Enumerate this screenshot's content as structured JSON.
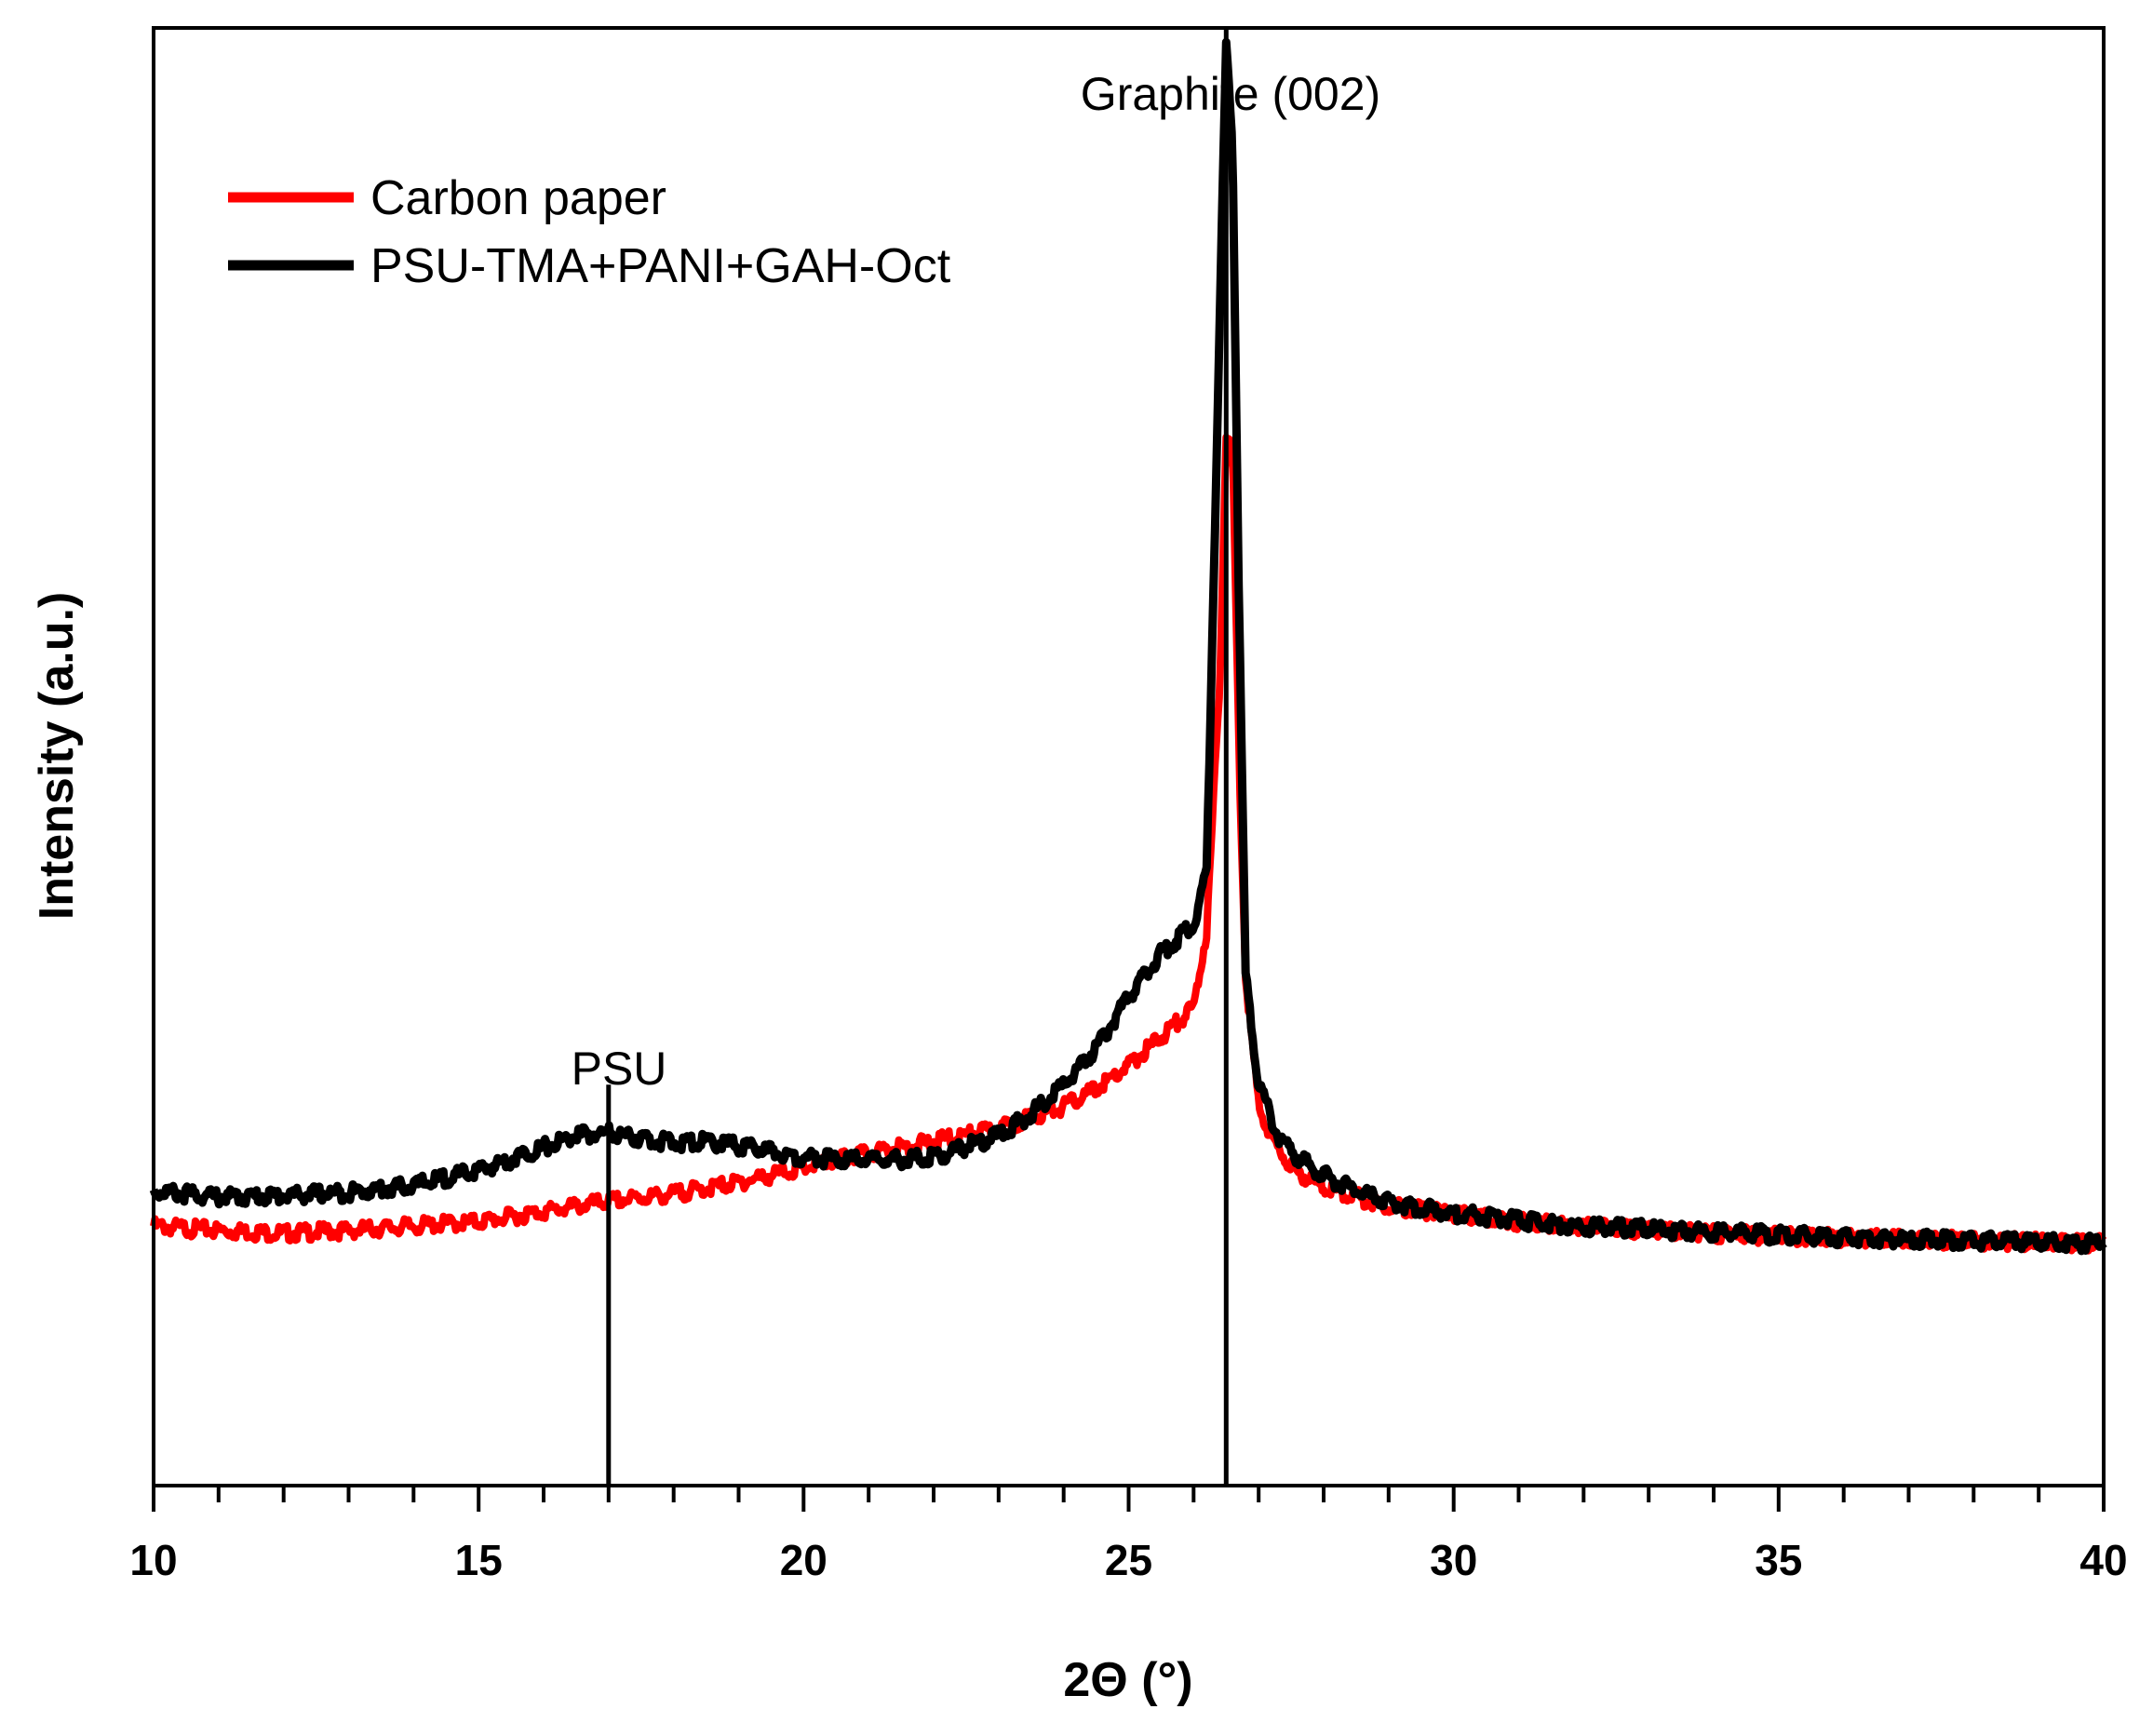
{
  "chart_data": {
    "type": "line",
    "title": "",
    "xlabel": "2Θ  (°)",
    "ylabel": "Intensity (a.u.)",
    "xlim": [
      10,
      40
    ],
    "ylim": [
      0,
      100
    ],
    "xticks": [
      10,
      15,
      20,
      25,
      30,
      35,
      40
    ],
    "grid": false,
    "legend_position": "top-left",
    "series": [
      {
        "name": "Carbon paper",
        "color": "#ff0000",
        "x": [
          10,
          11,
          12,
          13,
          14,
          15,
          16,
          17,
          18,
          19,
          20,
          21,
          22,
          23,
          24,
          24.5,
          25,
          25.5,
          26,
          26.2,
          26.4,
          26.5,
          26.6,
          26.7,
          26.8,
          27,
          27.3,
          27.6,
          28,
          28.5,
          29,
          30,
          31,
          32,
          33,
          34,
          35,
          36,
          37,
          38,
          39,
          40
        ],
        "y": [
          17.8,
          17.5,
          17.3,
          17.5,
          17.8,
          18.1,
          18.8,
          19.5,
          20.0,
          20.8,
          21.8,
          22.8,
          23.6,
          24.5,
          26.0,
          27.2,
          28.8,
          30.8,
          32.8,
          38.0,
          55.0,
          72.0,
          71.0,
          50.0,
          35.0,
          26.0,
          23.0,
          21.5,
          20.5,
          19.8,
          19.2,
          18.6,
          18.1,
          17.8,
          17.5,
          17.3,
          17.1,
          17.0,
          16.9,
          16.8,
          16.7,
          16.6
        ]
      },
      {
        "name": "PSU-TMA+PANI+GAH-Oct",
        "color": "#000000",
        "x": [
          10,
          11,
          12,
          13,
          14,
          15,
          16,
          16.5,
          17,
          17.5,
          18,
          18.5,
          19,
          20,
          21,
          22,
          23,
          23.5,
          24,
          24.5,
          25,
          25.5,
          26,
          26.2,
          26.35,
          26.5,
          26.6,
          26.7,
          26.8,
          27,
          27.3,
          27.6,
          28,
          28.5,
          29,
          30,
          31,
          32,
          33,
          34,
          35,
          36,
          37,
          38,
          39,
          40
        ],
        "y": [
          20.2,
          19.8,
          19.9,
          20.1,
          20.6,
          21.6,
          23.2,
          24.0,
          24.2,
          23.8,
          23.5,
          23.6,
          23.3,
          22.5,
          22.3,
          22.5,
          24.0,
          25.5,
          27.5,
          30.0,
          33.5,
          36.5,
          38.5,
          42.0,
          70.0,
          99.0,
          92.0,
          60.0,
          35.0,
          27.5,
          24.0,
          22.5,
          21.3,
          20.2,
          19.4,
          18.7,
          18.2,
          17.8,
          17.6,
          17.4,
          17.2,
          17.0,
          16.9,
          16.8,
          16.7,
          16.6
        ]
      }
    ],
    "reference_lines": [
      {
        "label": "PSU",
        "x": 17.0,
        "y_top": 27.5
      },
      {
        "label": "Graphite (002)",
        "x": 26.5,
        "y_top": 100
      }
    ]
  }
}
